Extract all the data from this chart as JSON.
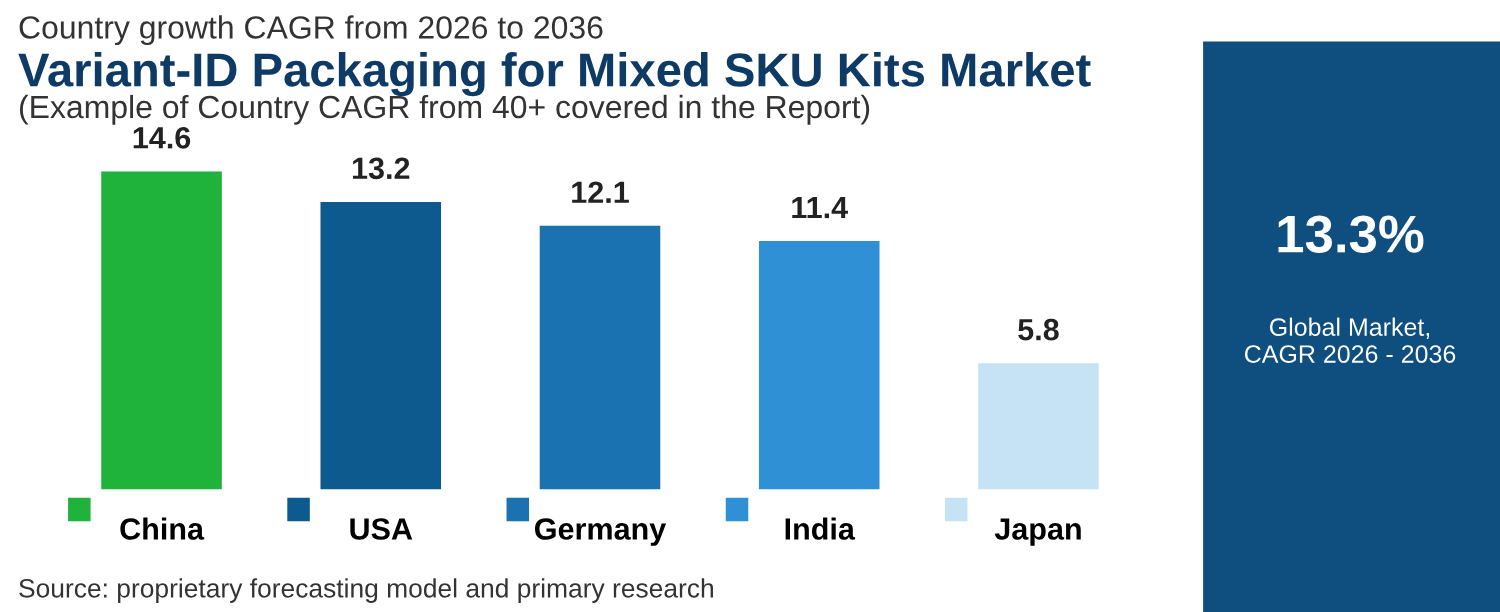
{
  "chart_data": {
    "type": "bar",
    "title": "Variant-ID Packaging for Mixed SKU Kits Market",
    "subtitle": "Country growth CAGR from 2026 to 2036",
    "categories": [
      "China",
      "USA",
      "Germany",
      "India",
      "Japan"
    ],
    "values": [
      14.6,
      13.2,
      12.1,
      11.4,
      5.8
    ],
    "colors": [
      "#1fb33c",
      "#0d5a8f",
      "#1b72b0",
      "#2f90d6",
      "#c6e3f5"
    ],
    "data_labels": true,
    "annotations": [
      "(Example of Country CAGR from 40+ covered in the Report)",
      "13.3%",
      "Global Market,\nCAGR 2026 - 2036",
      "Source: proprietary forecasting model and primary research"
    ]
  }
}
